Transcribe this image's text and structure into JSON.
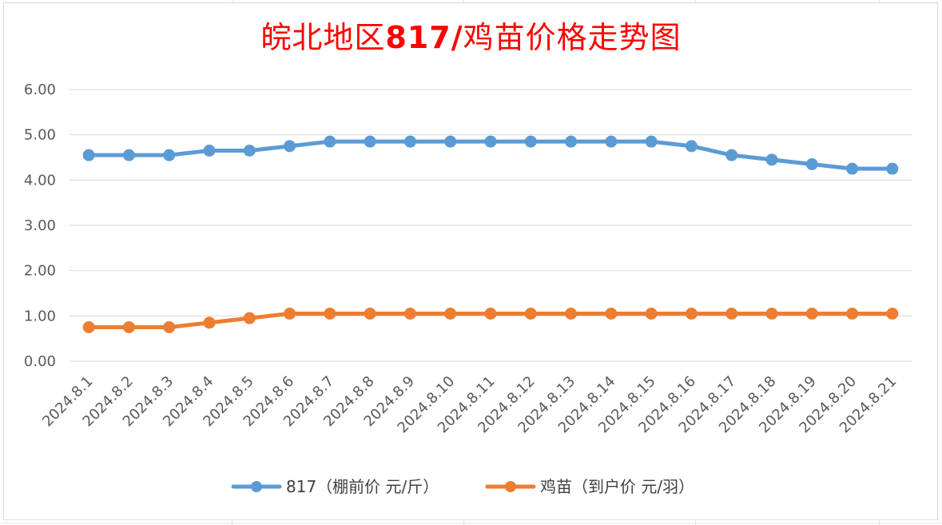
{
  "chart_data": {
    "type": "line",
    "title_part1": "皖北地区",
    "title_part2": "817/",
    "title_part3": "鸡苗价格走势图",
    "categories": [
      "2024.8.1",
      "2024.8.2",
      "2024.8.3",
      "2024.8.4",
      "2024.8.5",
      "2024.8.6",
      "2024.8.7",
      "2024.8.8",
      "2024.8.9",
      "2024.8.10",
      "2024.8.11",
      "2024.8.12",
      "2024.8.13",
      "2024.8.14",
      "2024.8.15",
      "2024.8.16",
      "2024.8.17",
      "2024.8.18",
      "2024.8.19",
      "2024.8.20",
      "2024.8.21"
    ],
    "y_ticks": [
      "0.00",
      "1.00",
      "2.00",
      "3.00",
      "4.00",
      "5.00",
      "6.00"
    ],
    "ylim": [
      0,
      6
    ],
    "grid": "horizontal",
    "legend_position": "bottom",
    "series": [
      {
        "name": "817（棚前价 元/斤）",
        "color": "#5b9bd5",
        "values": [
          4.55,
          4.55,
          4.55,
          4.65,
          4.65,
          4.75,
          4.85,
          4.85,
          4.85,
          4.85,
          4.85,
          4.85,
          4.85,
          4.85,
          4.85,
          4.75,
          4.55,
          4.45,
          4.35,
          4.25,
          4.25
        ]
      },
      {
        "name": "鸡苗（到户价 元/羽）",
        "color": "#ed7d31",
        "values": [
          0.75,
          0.75,
          0.75,
          0.85,
          0.95,
          1.05,
          1.05,
          1.05,
          1.05,
          1.05,
          1.05,
          1.05,
          1.05,
          1.05,
          1.05,
          1.05,
          1.05,
          1.05,
          1.05,
          1.05,
          1.05
        ]
      }
    ]
  }
}
